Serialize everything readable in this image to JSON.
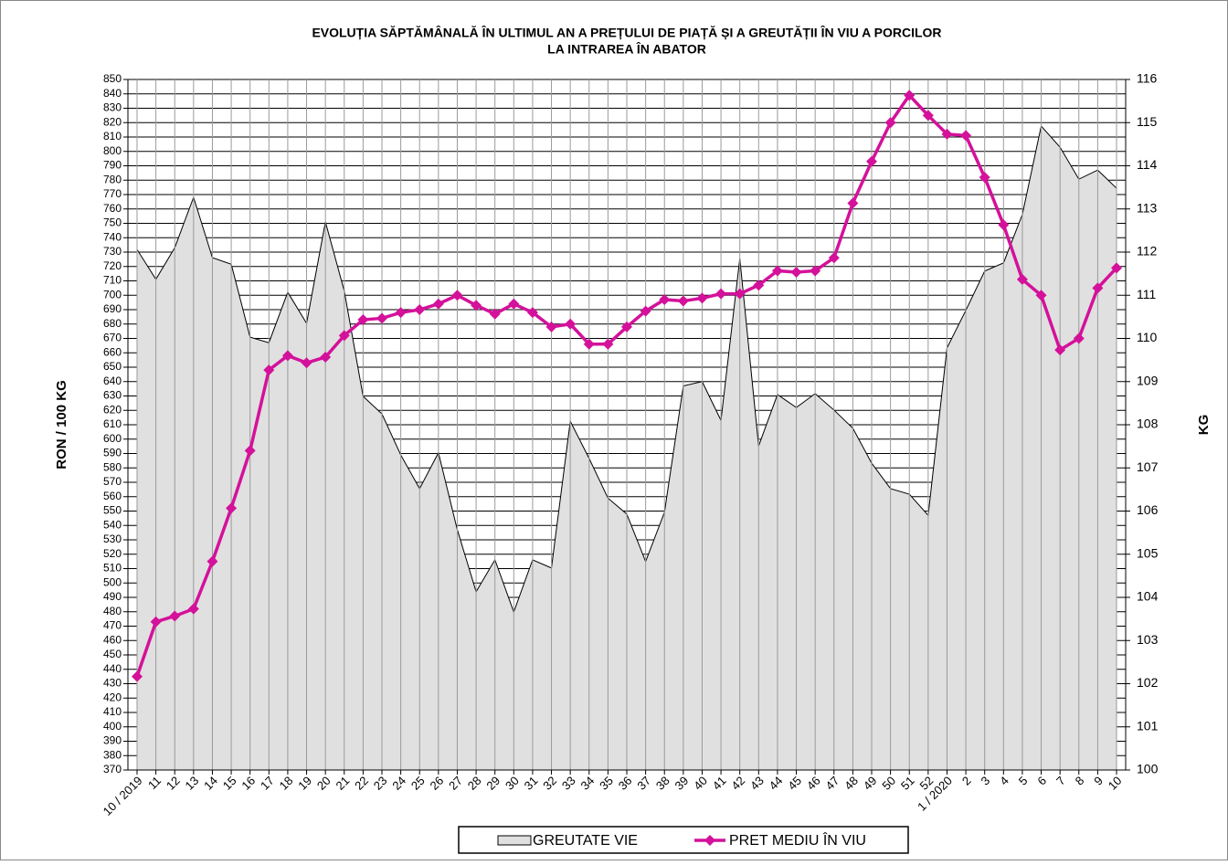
{
  "chart_data": {
    "type": "combo",
    "title": [
      "EVOLUȚIA SĂPTĂMÂNALĂ ÎN ULTIMUL  AN A PREȚULUI  DE PIAȚĂ ȘI A GREUTĂȚII  ÎN VIU A PORCILOR",
      "LA INTRAREA ÎN ABATOR"
    ],
    "y_label": "RON / 100 KG",
    "y2_label": "KG",
    "categories": [
      "10 / 2019",
      "11",
      "12",
      "13",
      "14",
      "15",
      "16",
      "17",
      "18",
      "19",
      "20",
      "21",
      "22",
      "23",
      "24",
      "25",
      "26",
      "27",
      "28",
      "29",
      "30",
      "31",
      "32",
      "33",
      "34",
      "35",
      "36",
      "37",
      "38",
      "39",
      "40",
      "41",
      "42",
      "43",
      "44",
      "45",
      "46",
      "47",
      "48",
      "49",
      "50",
      "51",
      "52",
      "1 / 2020",
      "2",
      "3",
      "4",
      "5",
      "6",
      "7",
      "8",
      "9",
      "10"
    ],
    "series": [
      {
        "name": "GREUTATE VIE",
        "type": "area",
        "axis": "y2",
        "color": "#e0e0e0",
        "values": [
          112.06,
          111.37,
          112.1,
          113.27,
          111.87,
          111.72,
          110.03,
          109.9,
          111.07,
          110.35,
          112.7,
          111.1,
          108.66,
          108.25,
          107.3,
          106.52,
          107.35,
          105.57,
          104.13,
          104.87,
          103.66,
          104.87,
          104.68,
          108.08,
          107.22,
          106.3,
          105.93,
          104.83,
          105.97,
          108.9,
          109.0,
          108.1,
          111.85,
          107.51,
          108.7,
          108.4,
          108.72,
          108.34,
          107.92,
          107.11,
          106.52,
          106.39,
          105.9,
          109.78,
          110.65,
          111.56,
          111.75,
          112.87,
          114.92,
          114.43,
          113.69,
          113.9,
          113.48
        ]
      },
      {
        "name": "PRET MEDIU ÎN VIU",
        "type": "line",
        "axis": "y",
        "color": "#d4119a",
        "values": [
          435,
          473,
          477,
          482,
          515,
          552,
          592,
          648,
          658,
          653,
          657,
          672,
          683,
          684,
          688,
          690,
          694,
          700,
          693,
          687,
          694,
          688,
          678,
          680,
          666,
          666,
          678,
          689,
          697,
          696,
          698,
          701,
          701,
          707,
          717,
          716,
          717,
          726,
          764,
          793,
          820,
          839,
          825,
          812,
          811,
          782,
          749,
          711,
          700,
          662,
          670,
          705,
          719
        ]
      }
    ],
    "ylim": [
      370,
      850
    ],
    "yticks": [
      370,
      380,
      390,
      400,
      410,
      420,
      430,
      440,
      450,
      460,
      470,
      480,
      490,
      500,
      510,
      520,
      530,
      540,
      550,
      560,
      570,
      580,
      590,
      600,
      610,
      620,
      630,
      640,
      650,
      660,
      670,
      680,
      690,
      700,
      710,
      720,
      730,
      740,
      750,
      760,
      770,
      780,
      790,
      800,
      810,
      820,
      830,
      840,
      850
    ],
    "y2lim": [
      100,
      116
    ],
    "y2ticks": [
      100,
      101,
      102,
      103,
      104,
      105,
      106,
      107,
      108,
      109,
      110,
      111,
      112,
      113,
      114,
      115,
      116
    ],
    "grid": true
  }
}
